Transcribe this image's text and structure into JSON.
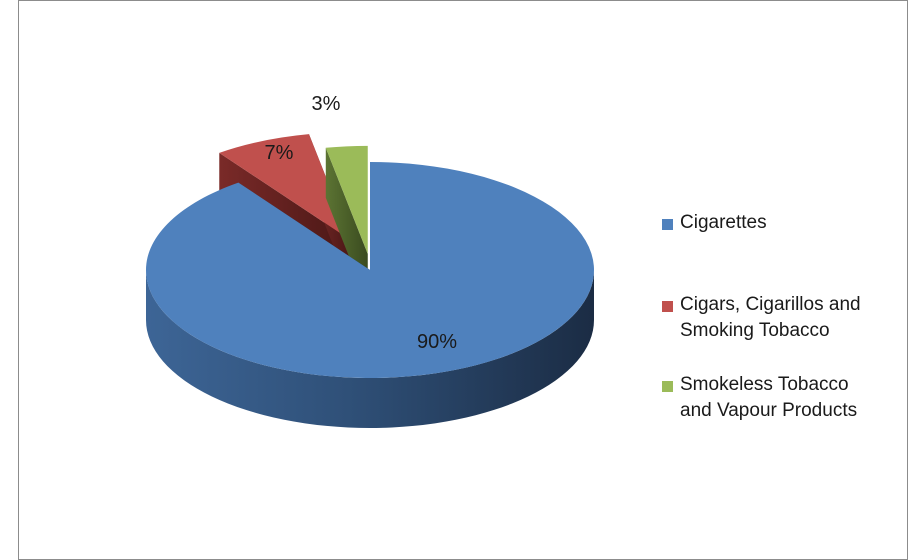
{
  "chart_data": {
    "type": "pie",
    "title": "",
    "three_d": true,
    "exploded": true,
    "legend_position": "right",
    "categories": [
      "Cigarettes",
      "Cigars, Cigarillos and Smoking Tobacco",
      "Smokeless Tobacco and Vapour Products"
    ],
    "values": [
      90,
      7,
      3
    ],
    "data_labels": [
      "90%",
      "7%",
      "3%"
    ],
    "colors": [
      "#4f81bd",
      "#c0504d",
      "#9bbb59"
    ],
    "legend": [
      {
        "line1": "Cigarettes",
        "line2": ""
      },
      {
        "line1": "Cigars, Cigarillos and",
        "line2": "Smoking Tobacco"
      },
      {
        "line1": "Smokeless Tobacco",
        "line2": "and Vapour Products"
      }
    ]
  }
}
